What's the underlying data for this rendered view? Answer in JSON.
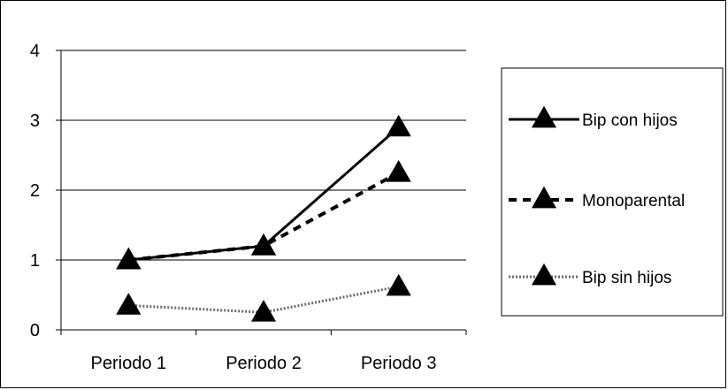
{
  "chart_data": {
    "type": "line",
    "categories": [
      "Periodo 1",
      "Periodo 2",
      "Periodo 3"
    ],
    "ylim": [
      0,
      4
    ],
    "yticks": [
      0,
      1,
      2,
      3,
      4
    ],
    "grid": true,
    "legend_position": "right",
    "series": [
      {
        "name": "Bip con hijos",
        "values": [
          1.0,
          1.2,
          2.9
        ],
        "style": "solid",
        "marker": "triangle",
        "color": "#000000"
      },
      {
        "name": "Monoparental",
        "values": [
          1.0,
          1.2,
          2.25
        ],
        "style": "dashed",
        "marker": "triangle",
        "color": "#000000"
      },
      {
        "name": "Bip sin hijos",
        "values": [
          0.35,
          0.25,
          0.62
        ],
        "style": "dotted",
        "marker": "triangle",
        "color": "#000000"
      }
    ]
  }
}
